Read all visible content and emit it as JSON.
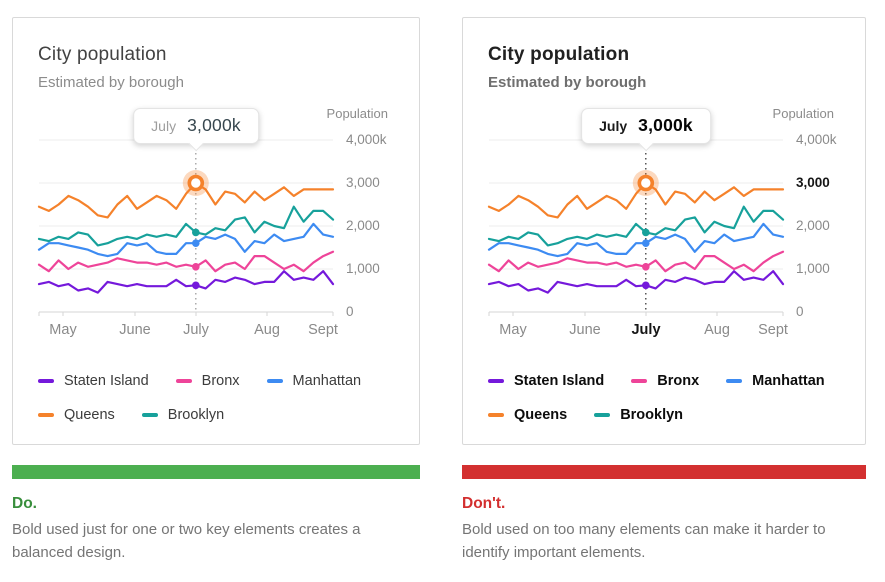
{
  "cards": [
    {
      "variant": "do",
      "title": "City population",
      "subtitle": "Estimated by borough",
      "axis_title": "Population",
      "tooltip": {
        "label": "July",
        "value": "3,000k"
      },
      "bold_elements": [
        "tooltip_value"
      ]
    },
    {
      "variant": "dont",
      "title": "City population",
      "subtitle": "Estimated by borough",
      "axis_title": "Population",
      "tooltip": {
        "label": "July",
        "value": "3,000k"
      },
      "emphasized_y_tick": "3,000",
      "emphasized_x_tick": "July",
      "bold_elements": [
        "title",
        "subtitle",
        "tooltip_label",
        "tooltip_value",
        "y_tick_3000",
        "x_tick_july",
        "legend_labels",
        "cursor_line"
      ]
    }
  ],
  "captions": [
    {
      "label": "Do.",
      "text": "Bold used just for one or two key elements creates a balanced design.",
      "color": "#388e3c",
      "bar_color": "#4caf50"
    },
    {
      "label": "Don't.",
      "text": "Bold used on too many elements can make it harder to identify important elements.",
      "color": "#d32f2f",
      "bar_color": "#d33030"
    }
  ],
  "chart_data": {
    "type": "line",
    "title": "City population",
    "subtitle": "Estimated by borough",
    "ylabel": "Population",
    "x_labels": [
      "May",
      "June",
      "July",
      "Aug",
      "Sept"
    ],
    "y_ticks": [
      "0",
      "1,000",
      "2,000",
      "3,000",
      "4,000k"
    ],
    "grid_values": [
      0,
      1000,
      2000,
      3000,
      4000
    ],
    "ylim": [
      0,
      4300
    ],
    "legend_position": "bottom",
    "grid": true,
    "highlight": {
      "x_label": "July",
      "index": 16,
      "series": "Queens",
      "value": 3000,
      "value_label": "3,000k"
    },
    "legend_rows": [
      [
        "Staten Island",
        "Bronx",
        "Manhattan"
      ],
      [
        "Queens",
        "Brooklyn"
      ]
    ],
    "series": [
      {
        "name": "Queens",
        "color": "#f5822b",
        "values": [
          2450,
          2350,
          2500,
          2700,
          2600,
          2450,
          2250,
          2200,
          2500,
          2700,
          2400,
          2550,
          2700,
          2600,
          2400,
          2750,
          3000,
          2850,
          2500,
          2800,
          2750,
          2550,
          2800,
          2600,
          2750,
          2900,
          2700,
          2850,
          2850,
          2850,
          2850
        ]
      },
      {
        "name": "Brooklyn",
        "color": "#17a19b",
        "values": [
          1700,
          1650,
          1750,
          1700,
          1850,
          1800,
          1550,
          1600,
          1700,
          1750,
          1700,
          1800,
          1750,
          1800,
          1750,
          2050,
          1850,
          1800,
          1950,
          1900,
          2150,
          2200,
          1850,
          2100,
          2000,
          1950,
          2450,
          2100,
          2350,
          2350,
          2150
        ]
      },
      {
        "name": "Manhattan",
        "color": "#3d8bf2",
        "values": [
          1450,
          1600,
          1600,
          1550,
          1500,
          1450,
          1350,
          1300,
          1350,
          1600,
          1550,
          1600,
          1400,
          1350,
          1350,
          1600,
          1600,
          1750,
          1700,
          1800,
          1700,
          1400,
          1650,
          1600,
          1800,
          1650,
          1700,
          1750,
          2050,
          1800,
          1750
        ]
      },
      {
        "name": "Bronx",
        "color": "#ee4499",
        "values": [
          1100,
          950,
          1200,
          1000,
          1150,
          1050,
          1100,
          1150,
          1250,
          1200,
          1150,
          1150,
          1100,
          1150,
          1050,
          1100,
          1050,
          1200,
          950,
          1100,
          1150,
          1000,
          1300,
          1300,
          1150,
          1000,
          1100,
          950,
          1150,
          1300,
          1400
        ]
      },
      {
        "name": "Staten Island",
        "color": "#7519db",
        "values": [
          650,
          700,
          600,
          650,
          500,
          550,
          450,
          700,
          650,
          600,
          650,
          600,
          600,
          600,
          750,
          600,
          620,
          550,
          750,
          700,
          800,
          750,
          650,
          700,
          700,
          950,
          750,
          800,
          750,
          950,
          650
        ]
      }
    ]
  }
}
